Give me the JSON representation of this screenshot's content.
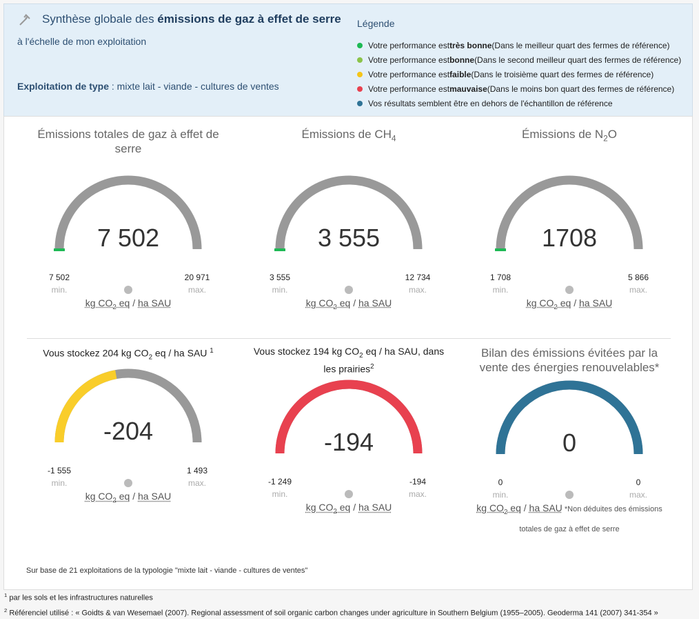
{
  "header": {
    "title_pre": "Synthèse globale des ",
    "title_bold": "émissions de gaz à effet de serre",
    "subtitle": "à l'échelle de mon exploitation",
    "type_label": "Exploitation de type",
    "type_value": " : mixte lait - viande - cultures de ventes"
  },
  "legend": {
    "title": "Légende",
    "items": [
      {
        "color": "#1db954",
        "pre": "Votre performance est ",
        "bold": "très bonne",
        "post": " (Dans le meilleur quart des fermes de référence)"
      },
      {
        "color": "#8bc34a",
        "pre": "Votre performance est ",
        "bold": "bonne",
        "post": " (Dans le second meilleur quart des fermes de référence)"
      },
      {
        "color": "#f5c518",
        "pre": "Votre performance est ",
        "bold": "faible",
        "post": " (Dans le troisième quart des fermes de référence)"
      },
      {
        "color": "#e8414f",
        "pre": "Votre performance est ",
        "bold": "mauvaise",
        "post": " (Dans le moins bon quart des fermes de référence)"
      },
      {
        "color": "#2f7396",
        "pre": "Vos résultats semblent être en dehors de l'échantillon de référence",
        "bold": "",
        "post": ""
      }
    ]
  },
  "min_label": "min.",
  "max_label": "max.",
  "unit": {
    "pre": "kg CO",
    "sub": "2",
    "post": " eq",
    "sep": " / ",
    "ha": "ha SAU"
  },
  "gauges": [
    {
      "title": {
        "pre": "Émissions totales de gaz à effet de serre"
      },
      "color": "#1db954",
      "value": {
        "value": 7502,
        "label": "7 502"
      },
      "min": {
        "value": 7502,
        "label": "7 502"
      },
      "max": {
        "value": 20971,
        "label": "20 971"
      }
    },
    {
      "title": {
        "pre": "Émissions de CH",
        "sub": "4"
      },
      "color": "#1db954",
      "value": {
        "value": 3555,
        "label": "3 555"
      },
      "min": {
        "value": 3555,
        "label": "3 555"
      },
      "max": {
        "value": 12734,
        "label": "12 734"
      }
    },
    {
      "title": {
        "pre": "Émissions de N",
        "sub": "2",
        "post": "O"
      },
      "color": "#1db954",
      "value": {
        "value": 1708,
        "label": "1708"
      },
      "min": {
        "value": 1708,
        "label": "1 708"
      },
      "max": {
        "value": 5866,
        "label": "5 866"
      }
    },
    {
      "title": {
        "pre": "Vous stockez 204 kg CO",
        "sub": "2",
        "post": " eq / ha SAU ",
        "sup": "1"
      },
      "color": "#f9cd2a",
      "value": {
        "value": -204,
        "label": "-204"
      },
      "min": {
        "value": -1555,
        "label": "-1 555"
      },
      "max": {
        "value": 1493,
        "label": "1 493"
      }
    },
    {
      "title": {
        "pre": "Vous stockez 194 kg CO",
        "sub": "2",
        "post": " eq / ha SAU, dans les prairies",
        "sup": "2"
      },
      "color": "#e8414f",
      "value": {
        "value": -194,
        "label": "-194"
      },
      "min": {
        "value": -1249,
        "label": "-1 249"
      },
      "max": {
        "value": -194,
        "label": "-194"
      }
    },
    {
      "title": {
        "pre": "Bilan des émissions évitées par la vente des énergies renouvelables*"
      },
      "color": "#2f7396",
      "value": {
        "value": 0,
        "label": "0"
      },
      "min": {
        "value": 0,
        "label": "0"
      },
      "max": {
        "value": 0,
        "label": "0"
      },
      "note": " *Non déduites des émissions totales de gaz à effet de serre"
    }
  ],
  "base_note": "Sur base de 21 exploitations de la typologie \"mixte lait - viande - cultures de ventes\"",
  "footnotes": [
    {
      "n": "1",
      "text": " par les sols et les infrastructures naturelles"
    },
    {
      "n": "2",
      "text": " Référenciel utilisé : « Goidts & van Wesemael (2007). Regional assessment of soil organic carbon changes under agriculture in Southern Belgium (1955–2005). Geoderma 141 (2007) 341-354 »"
    }
  ]
}
